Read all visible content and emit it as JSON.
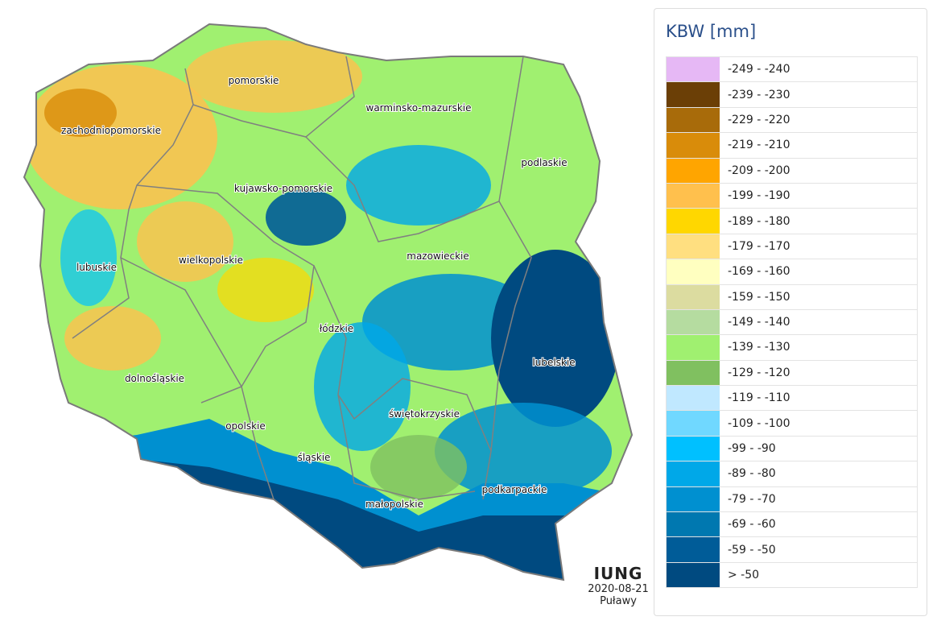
{
  "map": {
    "regions": [
      "pomorskie",
      "warminsko-mazurskie",
      "zachodniopomorskie",
      "podlaskie",
      "kujawsko-pomorskie",
      "mazowieckie",
      "lubuskie",
      "wielkopolskie",
      "łódzkie",
      "lubelskie",
      "dolnośląskie",
      "świętokrzyskie",
      "opolskie",
      "śląskie",
      "podkarpackie",
      "małopolskie"
    ]
  },
  "legend": {
    "title": "KBW [mm]",
    "items": [
      {
        "label": "-249 - -240",
        "color": "#e6b8f5"
      },
      {
        "label": "-239 - -230",
        "color": "#6b3f06"
      },
      {
        "label": "-229 - -220",
        "color": "#a86b0a"
      },
      {
        "label": "-219 - -210",
        "color": "#d98c0a"
      },
      {
        "label": "-209 - -200",
        "color": "#ffa500"
      },
      {
        "label": "-199 - -190",
        "color": "#ffc04d"
      },
      {
        "label": "-189 - -180",
        "color": "#ffd700"
      },
      {
        "label": "-179 - -170",
        "color": "#ffdf80"
      },
      {
        "label": "-169 - -160",
        "color": "#ffffc0"
      },
      {
        "label": "-159 - -150",
        "color": "#dcdca0"
      },
      {
        "label": "-149 - -140",
        "color": "#b5dca0"
      },
      {
        "label": "-139 - -130",
        "color": "#a0f070"
      },
      {
        "label": "-129 - -120",
        "color": "#80c060"
      },
      {
        "label": "-119 - -110",
        "color": "#c0e8ff"
      },
      {
        "label": "-109 - -100",
        "color": "#70d8ff"
      },
      {
        "label": "-99 - -90",
        "color": "#00c0ff"
      },
      {
        "label": "-89 - -80",
        "color": "#00a8e8"
      },
      {
        "label": "-79 - -70",
        "color": "#0090d0"
      },
      {
        "label": "-69 - -60",
        "color": "#0078b0"
      },
      {
        "label": "-59 - -50",
        "color": "#005c98"
      },
      {
        "label": "> -50",
        "color": "#004a80"
      }
    ]
  },
  "logo": {
    "name": "IUNG",
    "date": "2020-08-21",
    "place": "Puławy"
  }
}
